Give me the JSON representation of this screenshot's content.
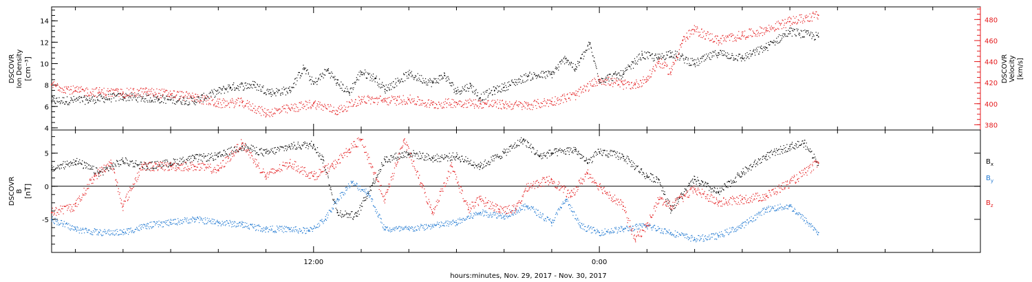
{
  "colors": {
    "black": "#000000",
    "red": "#e41a1c",
    "blue": "#1f78d1"
  },
  "xaxis": {
    "title": "hours:minutes, Nov. 29, 2017 - Nov. 30, 2017",
    "ticks": [
      {
        "hour": 12,
        "label": "12:00"
      },
      {
        "hour": 24,
        "label": "0:00"
      }
    ],
    "xlim": [
      1.0,
      40.0
    ],
    "minor_step_hours": 2
  },
  "chart_data": [
    {
      "type": "scatter",
      "panel": "top",
      "left_axis": {
        "label_lines": [
          "DSCOVR",
          "Ion  Density"
        ],
        "unit": "[cm⁻³]",
        "ylim": [
          3.8,
          15.3
        ],
        "ticks": [
          4,
          6,
          8,
          10,
          12,
          14
        ],
        "color": "#000000"
      },
      "right_axis": {
        "label_lines": [
          "DSCOVR",
          "Velocity"
        ],
        "unit": "[km/s]",
        "ylim": [
          375,
          492
        ],
        "ticks": [
          380,
          400,
          420,
          440,
          460,
          480
        ],
        "color": "#e41a1c"
      },
      "series": [
        {
          "axis": "left",
          "color": "#000000",
          "x": [
            1.0,
            2.5,
            4.0,
            5.5,
            7.0,
            8.5,
            9.5,
            10.2,
            11.0,
            11.6,
            12.0,
            12.6,
            13.0,
            13.5,
            14.0,
            14.6,
            15.0,
            16.0,
            17.0,
            17.5,
            18.0,
            18.6,
            19.0,
            19.6,
            20.0,
            21.0,
            22.0,
            22.6,
            23.0,
            23.6,
            24.0,
            25.0,
            25.8,
            26.5,
            27.0,
            28.0,
            29.0,
            30.0,
            31.0,
            32.0,
            33.2
          ],
          "y": [
            6.5,
            6.6,
            6.9,
            6.7,
            6.5,
            7.8,
            8.0,
            7.3,
            7.5,
            9.6,
            8.1,
            9.4,
            8.2,
            7.3,
            9.2,
            8.6,
            7.6,
            9.0,
            8.2,
            8.9,
            7.4,
            7.9,
            6.8,
            7.5,
            7.8,
            8.8,
            9.0,
            10.5,
            9.5,
            11.8,
            8.5,
            9.0,
            10.8,
            10.5,
            11.0,
            10.0,
            11.0,
            10.5,
            11.5,
            13.0,
            12.5
          ]
        },
        {
          "axis": "right",
          "color": "#e41a1c",
          "x": [
            1.0,
            2.0,
            3.0,
            4.0,
            5.0,
            6.0,
            7.0,
            8.0,
            9.0,
            10.0,
            11.0,
            12.0,
            13.0,
            14.0,
            15.0,
            15.5,
            16.0,
            17.0,
            18.0,
            19.0,
            20.0,
            21.0,
            22.0,
            23.0,
            24.0,
            25.0,
            25.5,
            26.0,
            26.5,
            27.0,
            27.5,
            28.0,
            29.0,
            30.0,
            31.0,
            32.0,
            33.2
          ],
          "y": [
            418,
            412,
            411,
            410,
            411,
            409,
            406,
            400,
            401,
            391,
            395,
            400,
            393,
            404,
            403,
            403,
            404,
            399,
            401,
            400,
            399,
            398,
            402,
            408,
            423,
            418,
            418,
            423,
            440,
            430,
            460,
            470,
            460,
            465,
            470,
            478,
            484
          ]
        }
      ]
    },
    {
      "type": "scatter",
      "panel": "bottom",
      "left_axis": {
        "label_lines": [
          "DSCOVR",
          "B"
        ],
        "unit": "[nT]",
        "ylim": [
          -10.0,
          8.5
        ],
        "ticks": [
          -5,
          0,
          5
        ],
        "color": "#000000"
      },
      "legend": {
        "placement": "right",
        "entries": [
          {
            "label": "B",
            "sub": "x",
            "color": "#000000"
          },
          {
            "label": "B",
            "sub": "y",
            "color": "#1f78d1"
          },
          {
            "label": "B",
            "sub": "z",
            "color": "#e41a1c"
          }
        ]
      },
      "series": [
        {
          "name": "Bx",
          "color": "#000000",
          "x": [
            1.0,
            2.0,
            3.0,
            4.0,
            5.0,
            6.0,
            7.0,
            8.0,
            9.0,
            10.0,
            11.0,
            12.0,
            12.4,
            13.0,
            13.8,
            14.5,
            15.0,
            16.0,
            17.0,
            18.0,
            19.0,
            20.0,
            20.8,
            21.5,
            22.0,
            23.0,
            23.5,
            24.0,
            25.0,
            26.0,
            26.5,
            27.0,
            28.0,
            29.0,
            30.0,
            31.0,
            32.0,
            32.6,
            33.2
          ],
          "y": [
            2.5,
            3.8,
            2.0,
            3.8,
            3.0,
            3.5,
            4.2,
            4.5,
            6.0,
            5.0,
            6.0,
            6.3,
            4.0,
            -4.0,
            -4.5,
            0.5,
            4.0,
            5.0,
            4.2,
            4.5,
            3.0,
            5.0,
            7.0,
            4.5,
            5.0,
            5.5,
            3.5,
            5.2,
            4.5,
            1.5,
            1.0,
            -3.5,
            1.0,
            -1.0,
            2.0,
            4.5,
            6.0,
            6.5,
            3.5
          ]
        },
        {
          "name": "By",
          "color": "#1f78d1",
          "x": [
            1.0,
            2.0,
            3.0,
            4.0,
            5.0,
            6.0,
            7.0,
            8.0,
            9.0,
            10.0,
            11.0,
            11.8,
            12.5,
            13.0,
            13.6,
            14.3,
            15.0,
            16.0,
            17.0,
            18.0,
            19.0,
            20.0,
            21.0,
            22.0,
            22.6,
            23.2,
            24.0,
            25.0,
            26.0,
            27.0,
            28.0,
            29.0,
            30.0,
            31.0,
            32.0,
            33.2
          ],
          "y": [
            -5.0,
            -6.5,
            -7.0,
            -7.0,
            -6.0,
            -5.5,
            -5.0,
            -5.5,
            -5.8,
            -6.5,
            -6.5,
            -6.8,
            -5.0,
            -2.0,
            0.5,
            -1.0,
            -6.5,
            -6.5,
            -6.0,
            -5.5,
            -4.0,
            -4.5,
            -3.0,
            -5.5,
            -2.0,
            -6.0,
            -7.0,
            -6.5,
            -6.0,
            -7.0,
            -8.0,
            -7.5,
            -6.0,
            -3.5,
            -3.0,
            -7.0
          ]
        },
        {
          "name": "Bz",
          "color": "#e41a1c",
          "x": [
            1.0,
            2.0,
            2.8,
            3.5,
            4.0,
            4.8,
            5.5,
            6.0,
            7.0,
            8.0,
            9.0,
            10.0,
            11.0,
            12.0,
            12.8,
            13.5,
            14.0,
            15.0,
            15.8,
            16.5,
            17.0,
            17.8,
            18.5,
            19.0,
            19.8,
            20.5,
            21.0,
            22.0,
            22.8,
            23.5,
            24.0,
            25.0,
            25.5,
            26.0,
            26.5,
            27.0,
            28.0,
            29.0,
            30.0,
            31.0,
            32.0,
            33.2
          ],
          "y": [
            -4.0,
            -3.0,
            1.5,
            3.5,
            -3.0,
            3.0,
            3.0,
            3.0,
            3.0,
            2.5,
            6.5,
            1.5,
            3.5,
            1.5,
            3.0,
            5.5,
            7.0,
            -2.0,
            7.0,
            0.5,
            -4.0,
            3.0,
            -3.5,
            -2.0,
            -3.5,
            -3.5,
            0.0,
            1.0,
            -1.5,
            2.0,
            0.0,
            -3.0,
            -8.0,
            -6.0,
            -2.0,
            -3.0,
            -0.5,
            -2.5,
            -2.0,
            -1.5,
            0.5,
            3.5
          ]
        }
      ]
    }
  ]
}
